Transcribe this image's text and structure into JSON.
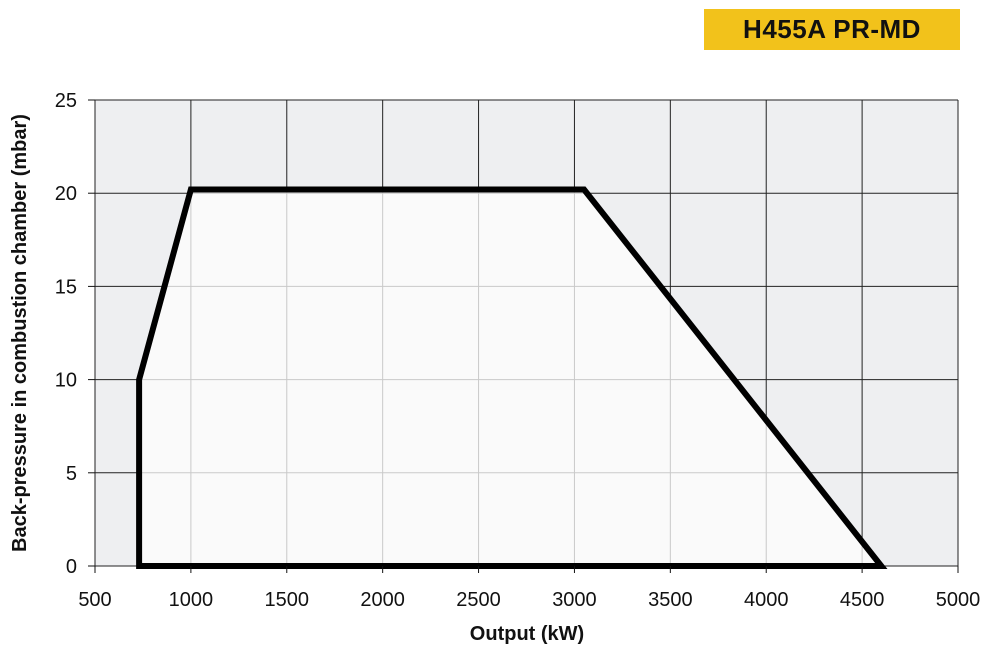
{
  "badge": {
    "label": "H455A PR-MD",
    "bg": "#f2c21b"
  },
  "chart_data": {
    "type": "area",
    "title": "",
    "xlabel": "Output (kW)",
    "ylabel": "Back-pressure in combustion chamber (mbar)",
    "xlim": [
      500,
      5000
    ],
    "ylim": [
      0,
      25
    ],
    "x_ticks": [
      500,
      1000,
      1500,
      2000,
      2500,
      3000,
      3500,
      4000,
      4500,
      5000
    ],
    "y_ticks": [
      0,
      5,
      10,
      15,
      20,
      25
    ],
    "x_tick_labels": [
      "500",
      "1000",
      "1500",
      "2000",
      "2500",
      "3000",
      "3500",
      "4000",
      "4500",
      "5000"
    ],
    "y_tick_labels": [
      "0",
      "5",
      "10",
      "15",
      "20",
      "25"
    ],
    "grid": true,
    "series": [
      {
        "x": [
          730,
          730,
          1000,
          3050,
          4600,
          730
        ],
        "y": [
          0,
          10,
          20.2,
          20.2,
          0,
          0
        ]
      }
    ],
    "colors": {
      "background": "#eeeff1",
      "inside": "#fafafa",
      "grid": "#222222",
      "inner_grid": "#c9c9c9",
      "line": "#000000"
    }
  }
}
